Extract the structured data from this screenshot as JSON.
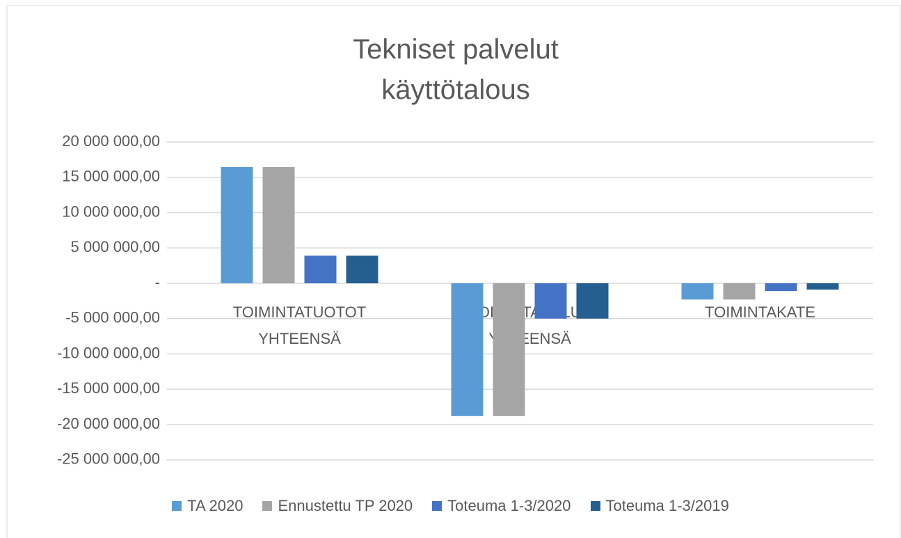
{
  "chart_data": {
    "type": "bar",
    "title": "Tekniset palvelut käyttötalous",
    "categories": [
      "TOIMINTATUOTOT YHTEENSÄ",
      "TOIMINTAKULUT YHTEENSÄ",
      "TOIMINTAKATE"
    ],
    "series": [
      {
        "name": "TA 2020",
        "color": "#5b9bd5",
        "values": [
          16450000,
          -18800000,
          -2300000
        ]
      },
      {
        "name": "Ennustettu TP 2020",
        "color": "#a5a5a5",
        "values": [
          16450000,
          -18800000,
          -2300000
        ]
      },
      {
        "name": "Toteuma 1-3/2020",
        "color": "#4472c4",
        "values": [
          3900000,
          -5000000,
          -1100000
        ]
      },
      {
        "name": "Toteuma 1-3/2019",
        "color": "#255e91",
        "values": [
          3900000,
          -5000000,
          -900000
        ]
      }
    ],
    "ylim": [
      -25000000,
      20000000
    ],
    "yticks": [
      {
        "value": 20000000,
        "label": "20 000 000,00"
      },
      {
        "value": 15000000,
        "label": "15 000 000,00"
      },
      {
        "value": 10000000,
        "label": "10 000 000,00"
      },
      {
        "value": 5000000,
        "label": "5 000 000,00"
      },
      {
        "value": 0,
        "label": "-"
      },
      {
        "value": -5000000,
        "label": "-5 000 000,00"
      },
      {
        "value": -10000000,
        "label": "-10 000 000,00"
      },
      {
        "value": -15000000,
        "label": "-15 000 000,00"
      },
      {
        "value": -20000000,
        "label": "-20 000 000,00"
      },
      {
        "value": -25000000,
        "label": "-25 000 000,00"
      }
    ],
    "grid": true
  }
}
